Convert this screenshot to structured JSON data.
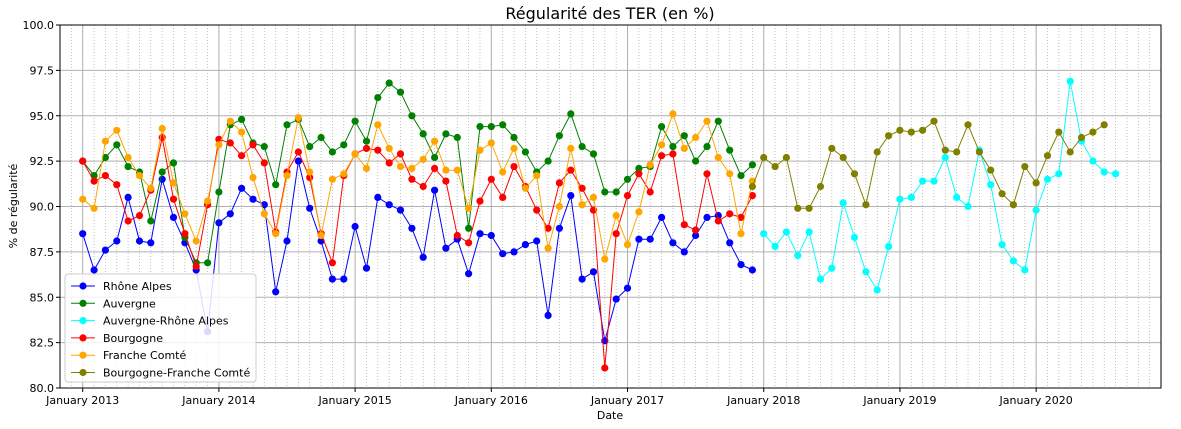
{
  "chart_data": {
    "type": "line",
    "title": "Régularité des TER (en %)",
    "xlabel": "Date",
    "ylabel": "% de régularité",
    "x_start": "2012-11",
    "x_end": "2020-12",
    "ylim": [
      80,
      100
    ],
    "yticks": [
      "80.0",
      "82.5",
      "85.0",
      "87.5",
      "90.0",
      "92.5",
      "95.0",
      "97.5",
      "100.0"
    ],
    "xticks": [
      {
        "date": "2013-01",
        "label": "January 2013"
      },
      {
        "date": "2014-01",
        "label": "January 2014"
      },
      {
        "date": "2015-01",
        "label": "January 2015"
      },
      {
        "date": "2016-01",
        "label": "January 2016"
      },
      {
        "date": "2017-01",
        "label": "January 2017"
      },
      {
        "date": "2018-01",
        "label": "January 2018"
      },
      {
        "date": "2019-01",
        "label": "January 2019"
      },
      {
        "date": "2020-01",
        "label": "January 2020"
      }
    ],
    "grid": true,
    "legend_position": "lower-left",
    "series": [
      {
        "name": "Rhône Alpes",
        "color": "#0000ff",
        "start": "2013-01",
        "values": [
          88.5,
          86.5,
          87.6,
          88.1,
          90.5,
          88.1,
          88.0,
          91.5,
          89.4,
          88.0,
          86.5,
          83.1,
          89.1,
          89.6,
          91.0,
          90.4,
          90.1,
          85.3,
          88.1,
          92.5,
          89.9,
          88.1,
          86.0,
          86.0,
          88.9,
          86.6,
          90.5,
          90.1,
          89.8,
          88.8,
          87.2,
          90.9,
          87.7,
          88.2,
          86.3,
          88.5,
          88.4,
          87.4,
          87.5,
          87.9,
          88.1,
          84.0,
          88.8,
          90.6,
          86.0,
          86.4,
          82.6,
          84.9,
          85.5,
          88.2,
          88.2,
          89.4,
          88.0,
          87.5,
          88.4,
          89.4,
          89.5,
          88.0,
          86.8,
          86.5
        ]
      },
      {
        "name": "Auvergne",
        "color": "#008000",
        "start": "2013-01",
        "values": [
          92.5,
          91.7,
          92.7,
          93.4,
          92.2,
          91.9,
          89.2,
          91.9,
          92.4,
          88.3,
          86.9,
          86.9,
          90.8,
          94.5,
          94.8,
          93.5,
          93.3,
          91.2,
          94.5,
          94.8,
          93.3,
          93.8,
          93.0,
          93.4,
          94.7,
          93.6,
          96.0,
          96.8,
          96.3,
          95.0,
          94.0,
          92.7,
          94.0,
          93.8,
          88.8,
          94.4,
          94.4,
          94.5,
          93.8,
          93.0,
          91.9,
          92.5,
          93.9,
          95.1,
          93.3,
          92.9,
          90.8,
          90.8,
          91.5,
          92.1,
          92.2,
          94.4,
          93.3,
          93.9,
          92.5,
          93.3,
          94.7,
          93.1,
          91.7,
          92.3
        ]
      },
      {
        "name": "Auvergne-Rhône Alpes",
        "color": "#00ffff",
        "start": "2018-01",
        "values": [
          88.5,
          87.8,
          88.6,
          87.3,
          88.6,
          86.0,
          86.6,
          90.2,
          88.3,
          86.4,
          85.4,
          87.8,
          90.4,
          90.5,
          91.4,
          91.4,
          92.7,
          90.5,
          90.0,
          93.1,
          91.2,
          87.9,
          87.0,
          86.5,
          89.8,
          91.5,
          91.8,
          96.9,
          93.6,
          92.5,
          91.9,
          91.8
        ]
      },
      {
        "name": "Bourgogne",
        "color": "#ff0000",
        "start": "2013-01",
        "values": [
          92.5,
          91.4,
          91.7,
          91.2,
          89.2,
          89.5,
          90.9,
          93.8,
          90.4,
          88.5,
          86.7,
          90.1,
          93.7,
          93.5,
          92.8,
          93.4,
          92.4,
          88.6,
          91.9,
          93.0,
          91.6,
          88.5,
          86.9,
          91.7,
          92.9,
          93.2,
          93.1,
          92.4,
          92.9,
          91.5,
          91.1,
          92.1,
          91.4,
          88.4,
          88.0,
          90.3,
          91.5,
          90.5,
          92.2,
          91.1,
          89.8,
          88.8,
          91.3,
          92.0,
          91.0,
          89.8,
          81.1,
          88.5,
          90.6,
          91.8,
          90.8,
          92.8,
          92.9,
          89.0,
          88.7,
          91.8,
          89.2,
          89.6,
          89.4,
          90.6
        ]
      },
      {
        "name": "Franche Comté",
        "color": "#ffa500",
        "start": "2013-01",
        "values": [
          90.4,
          89.9,
          93.6,
          94.2,
          92.7,
          91.7,
          91.0,
          94.3,
          91.3,
          89.6,
          88.1,
          90.3,
          93.4,
          94.7,
          94.1,
          91.6,
          89.6,
          88.5,
          91.7,
          94.9,
          91.9,
          88.4,
          91.5,
          91.8,
          92.9,
          92.1,
          94.5,
          93.2,
          92.2,
          92.1,
          92.6,
          93.6,
          92.0,
          92.0,
          89.9,
          93.1,
          93.5,
          91.9,
          93.2,
          91.0,
          91.7,
          87.7,
          90.0,
          93.2,
          90.1,
          90.5,
          87.1,
          89.5,
          87.9,
          89.7,
          92.3,
          93.4,
          95.1,
          93.2,
          93.8,
          94.7,
          92.7,
          91.8,
          88.5,
          91.4
        ]
      },
      {
        "name": "Bourgogne-Franche Comté",
        "color": "#808000",
        "start": "2017-12",
        "values": [
          91.1,
          92.7,
          92.2,
          92.7,
          89.9,
          89.9,
          91.1,
          93.2,
          92.7,
          91.8,
          90.1,
          93.0,
          93.9,
          94.2,
          94.1,
          94.2,
          94.7,
          93.1,
          93.0,
          94.5,
          93.0,
          92.0,
          90.7,
          90.1,
          92.2,
          91.3,
          92.8,
          94.1,
          93.0,
          93.8,
          94.1,
          94.5
        ]
      }
    ]
  }
}
